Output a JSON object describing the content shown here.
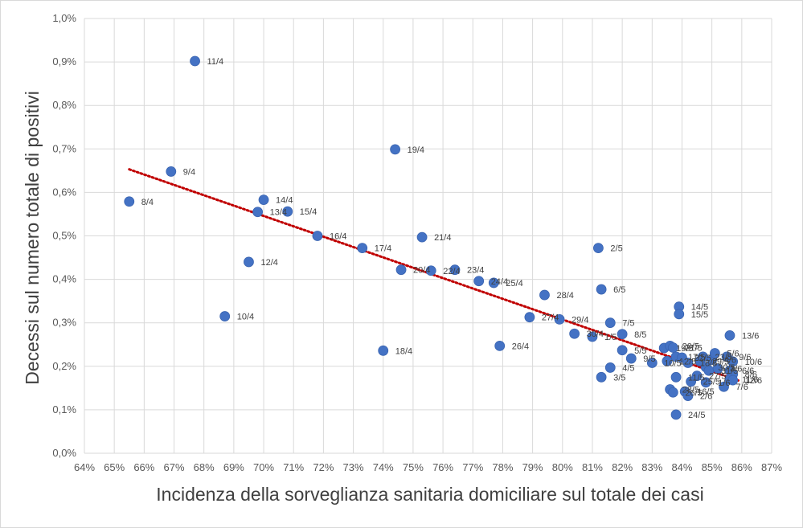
{
  "chart_data": {
    "type": "scatter",
    "xlabel": "Incidenza della sorveglianza sanitaria domiciliare sul totale dei casi",
    "ylabel": "Decessi sul numero totale di positivi",
    "xlim": [
      0.64,
      0.87
    ],
    "ylim": [
      0,
      0.01
    ],
    "x_ticks": [
      "64%",
      "65%",
      "66%",
      "67%",
      "68%",
      "69%",
      "70%",
      "71%",
      "72%",
      "73%",
      "74%",
      "75%",
      "76%",
      "77%",
      "78%",
      "79%",
      "80%",
      "81%",
      "82%",
      "83%",
      "84%",
      "85%",
      "86%",
      "87%"
    ],
    "y_ticks": [
      "0,0%",
      "0,1%",
      "0,2%",
      "0,3%",
      "0,4%",
      "0,5%",
      "0,6%",
      "0,7%",
      "0,8%",
      "0,9%",
      "1,0%"
    ],
    "grid": true,
    "marker_color": "#4472c4",
    "trendline": {
      "type": "linear",
      "color": "#c00000",
      "style": "dotted",
      "x_from": 0.655,
      "x_to": 0.859,
      "y_from": 0.00653,
      "y_to": 0.00167
    },
    "points": [
      {
        "label": "11/4",
        "x": 0.677,
        "y": 0.00902
      },
      {
        "label": "19/4",
        "x": 0.744,
        "y": 0.00699
      },
      {
        "label": "9/4",
        "x": 0.669,
        "y": 0.00648
      },
      {
        "label": "8/4",
        "x": 0.655,
        "y": 0.00579
      },
      {
        "label": "14/4",
        "x": 0.7,
        "y": 0.00583
      },
      {
        "label": "13/4",
        "x": 0.698,
        "y": 0.00555
      },
      {
        "label": "15/4",
        "x": 0.708,
        "y": 0.00556
      },
      {
        "label": "16/4",
        "x": 0.718,
        "y": 0.005
      },
      {
        "label": "17/4",
        "x": 0.733,
        "y": 0.00472
      },
      {
        "label": "21/4",
        "x": 0.753,
        "y": 0.00497
      },
      {
        "label": "12/4",
        "x": 0.695,
        "y": 0.0044
      },
      {
        "label": "20/4",
        "x": 0.746,
        "y": 0.00422
      },
      {
        "label": "22/4",
        "x": 0.756,
        "y": 0.0042
      },
      {
        "label": "23/4",
        "x": 0.764,
        "y": 0.00422
      },
      {
        "label": "24/4",
        "x": 0.772,
        "y": 0.00396
      },
      {
        "label": "25/4",
        "x": 0.777,
        "y": 0.00392
      },
      {
        "label": "2/5",
        "x": 0.812,
        "y": 0.00472
      },
      {
        "label": "6/5",
        "x": 0.813,
        "y": 0.00377
      },
      {
        "label": "28/4",
        "x": 0.794,
        "y": 0.00364
      },
      {
        "label": "10/4",
        "x": 0.687,
        "y": 0.00315
      },
      {
        "label": "27/4",
        "x": 0.789,
        "y": 0.00313
      },
      {
        "label": "29/4",
        "x": 0.799,
        "y": 0.00308
      },
      {
        "label": "30/4",
        "x": 0.804,
        "y": 0.00275
      },
      {
        "label": "1/5",
        "x": 0.81,
        "y": 0.00268
      },
      {
        "label": "7/5",
        "x": 0.816,
        "y": 0.003
      },
      {
        "label": "8/5",
        "x": 0.82,
        "y": 0.00274
      },
      {
        "label": "18/4",
        "x": 0.74,
        "y": 0.00236
      },
      {
        "label": "26/4",
        "x": 0.779,
        "y": 0.00247
      },
      {
        "label": "5/5",
        "x": 0.82,
        "y": 0.00237
      },
      {
        "label": "4/5",
        "x": 0.816,
        "y": 0.00197
      },
      {
        "label": "3/5",
        "x": 0.813,
        "y": 0.00175
      },
      {
        "label": "9/5",
        "x": 0.823,
        "y": 0.00218
      },
      {
        "label": "10/5",
        "x": 0.83,
        "y": 0.00208
      },
      {
        "label": "14/5",
        "x": 0.839,
        "y": 0.00337
      },
      {
        "label": "15/5",
        "x": 0.839,
        "y": 0.0032
      },
      {
        "label": "19/5",
        "x": 0.834,
        "y": 0.00242
      },
      {
        "label": "20/5",
        "x": 0.836,
        "y": 0.00247
      },
      {
        "label": "21/5",
        "x": 0.837,
        "y": 0.00243
      },
      {
        "label": "17/5",
        "x": 0.838,
        "y": 0.00222
      },
      {
        "label": "12/5",
        "x": 0.835,
        "y": 0.00212
      },
      {
        "label": "22/5",
        "x": 0.84,
        "y": 0.0022
      },
      {
        "label": "18/5",
        "x": 0.842,
        "y": 0.00208
      },
      {
        "label": "11/5",
        "x": 0.838,
        "y": 0.00175
      },
      {
        "label": "28/5",
        "x": 0.836,
        "y": 0.00147
      },
      {
        "label": "26/5",
        "x": 0.837,
        "y": 0.0014
      },
      {
        "label": "16/5",
        "x": 0.841,
        "y": 0.00142
      },
      {
        "label": "2/6",
        "x": 0.842,
        "y": 0.00132
      },
      {
        "label": "24/5",
        "x": 0.838,
        "y": 0.00089
      },
      {
        "label": "25/5",
        "x": 0.843,
        "y": 0.00165
      },
      {
        "label": "27/5",
        "x": 0.845,
        "y": 0.00178
      },
      {
        "label": "29/5",
        "x": 0.846,
        "y": 0.00212
      },
      {
        "label": "23/5",
        "x": 0.847,
        "y": 0.00222
      },
      {
        "label": "30/5",
        "x": 0.848,
        "y": 0.00198
      },
      {
        "label": "31/5",
        "x": 0.849,
        "y": 0.0019
      },
      {
        "label": "4/6",
        "x": 0.85,
        "y": 0.00215
      },
      {
        "label": "5/6",
        "x": 0.851,
        "y": 0.0023
      },
      {
        "label": "1/6",
        "x": 0.848,
        "y": 0.00163
      },
      {
        "label": "3/6",
        "x": 0.852,
        "y": 0.00195
      },
      {
        "label": "13/6",
        "x": 0.856,
        "y": 0.00271
      },
      {
        "label": "9/6",
        "x": 0.855,
        "y": 0.00222
      },
      {
        "label": "10/6",
        "x": 0.857,
        "y": 0.00211
      },
      {
        "label": "6/6",
        "x": 0.856,
        "y": 0.0019
      },
      {
        "label": "8/6",
        "x": 0.857,
        "y": 0.00182
      },
      {
        "label": "11/6",
        "x": 0.856,
        "y": 0.0017
      },
      {
        "label": "12/6",
        "x": 0.857,
        "y": 0.00168
      },
      {
        "label": "7/6",
        "x": 0.854,
        "y": 0.00153
      }
    ]
  }
}
